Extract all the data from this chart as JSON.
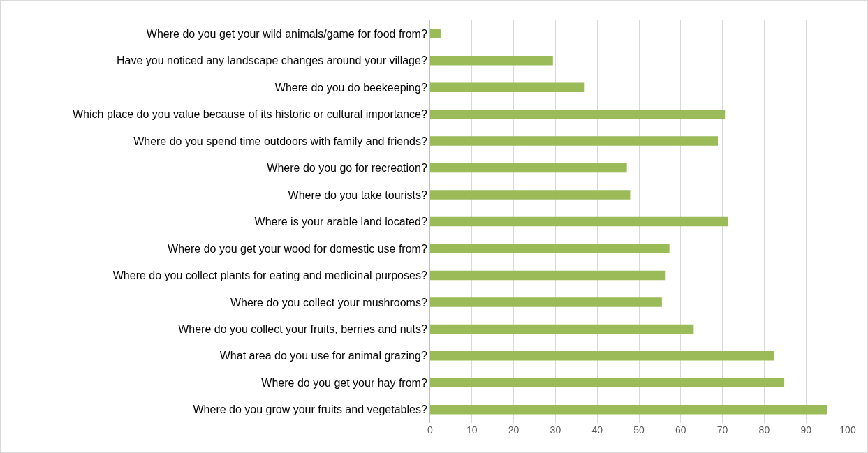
{
  "chart_data": {
    "type": "bar",
    "orientation": "horizontal",
    "categories": [
      "Where do you get your wild animals/game for food from?",
      "Have you noticed any landscape changes around your village?",
      "Where do you do beekeeping?",
      "Which place do you value because of its historic or cultural importance?",
      "Where do you spend time outdoors with family and friends?",
      "Where do you go for recreation?",
      "Where do you take tourists?",
      "Where is your arable land located?",
      "Where do you get your wood for domestic use from?",
      "Where do you collect plants for eating and medicinal purposes?",
      "Where do you collect your mushrooms?",
      "Where do you collect your fruits, berries and nuts?",
      "What area do you use for animal grazing?",
      "Where do you get your hay from?",
      "Where do you grow your fruits and vegetables?"
    ],
    "values": [
      2.5,
      29.4,
      37,
      70.6,
      68.9,
      47.1,
      47.9,
      71.4,
      57.3,
      56.4,
      55.5,
      63.1,
      82.4,
      84.8,
      95
    ],
    "color": "#9bbb59",
    "xlim": [
      0,
      100
    ],
    "xticks": [
      0,
      10,
      20,
      30,
      40,
      50,
      60,
      70,
      80,
      90,
      100
    ],
    "grid": "x",
    "legend": false
  }
}
